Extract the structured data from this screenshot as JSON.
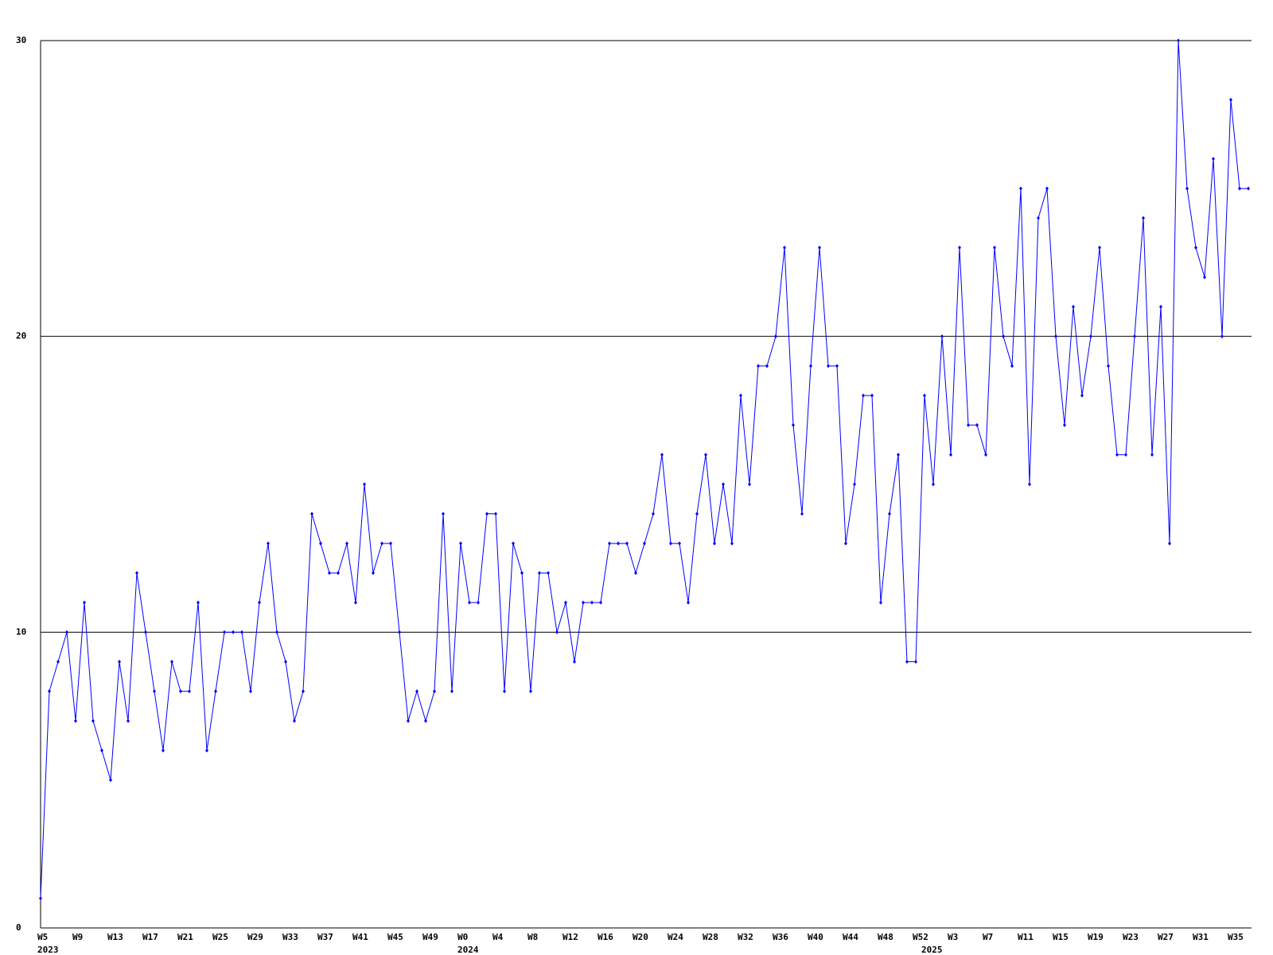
{
  "chart_data": {
    "type": "line",
    "categories": [
      "W5",
      null,
      null,
      null,
      "W9",
      null,
      null,
      null,
      "W13",
      null,
      null,
      null,
      "W17",
      null,
      null,
      null,
      "W21",
      null,
      null,
      null,
      "W25",
      null,
      null,
      null,
      "W29",
      null,
      null,
      null,
      "W33",
      null,
      null,
      null,
      "W37",
      null,
      null,
      null,
      "W41",
      null,
      null,
      null,
      "W45",
      null,
      null,
      null,
      "W49",
      null,
      null,
      null,
      "W0",
      null,
      null,
      null,
      "W4",
      null,
      null,
      null,
      "W8",
      null,
      null,
      null,
      "W12",
      null,
      null,
      null,
      "W16",
      null,
      null,
      null,
      "W20",
      null,
      null,
      null,
      "W24",
      null,
      null,
      null,
      "W28",
      null,
      null,
      null,
      "W32",
      null,
      null,
      null,
      "W36",
      null,
      null,
      null,
      "W40",
      null,
      null,
      null,
      "W44",
      null,
      null,
      null,
      "W48",
      null,
      null,
      null,
      "W52",
      null,
      null,
      null,
      "W3",
      null,
      null,
      null,
      "W7",
      null,
      null,
      null,
      "W11",
      null,
      null,
      null,
      "W15",
      null,
      null,
      null,
      "W19",
      null,
      null,
      null,
      "W23",
      null,
      null,
      null,
      "W27",
      null,
      null,
      null,
      "W31",
      null,
      null,
      null,
      "W35",
      null,
      null
    ],
    "years": [
      "2023",
      null,
      null,
      null,
      null,
      null,
      null,
      null,
      null,
      null,
      null,
      null,
      null,
      null,
      null,
      null,
      null,
      null,
      null,
      null,
      null,
      null,
      null,
      null,
      null,
      null,
      null,
      null,
      null,
      null,
      null,
      null,
      null,
      null,
      null,
      null,
      null,
      null,
      null,
      null,
      null,
      null,
      null,
      null,
      null,
      null,
      null,
      null,
      "2024",
      null,
      null,
      null,
      null,
      null,
      null,
      null,
      null,
      null,
      null,
      null,
      null,
      null,
      null,
      null,
      null,
      null,
      null,
      null,
      null,
      null,
      null,
      null,
      null,
      null,
      null,
      null,
      null,
      null,
      null,
      null,
      null,
      null,
      null,
      null,
      null,
      null,
      null,
      null,
      null,
      null,
      null,
      null,
      null,
      null,
      null,
      null,
      null,
      null,
      null,
      null,
      null,
      "2025",
      null,
      null,
      null,
      null,
      null,
      null,
      null,
      null,
      null,
      null,
      null,
      null,
      null,
      null,
      null,
      null,
      null,
      null,
      null,
      null,
      null,
      null,
      null,
      null,
      null,
      null,
      null,
      null,
      null,
      null,
      null,
      null,
      null,
      null,
      null,
      null,
      null
    ],
    "series": [
      {
        "color": "#0000ff",
        "values": [
          1,
          8,
          9,
          10,
          7,
          11,
          7,
          6,
          5,
          9,
          7,
          12,
          10,
          8,
          6,
          9,
          8,
          8,
          11,
          6,
          8,
          10,
          10,
          10,
          8,
          11,
          13,
          10,
          9,
          7,
          8,
          14,
          13,
          12,
          12,
          13,
          11,
          15,
          12,
          13,
          13,
          10,
          7,
          8,
          7,
          8,
          14,
          8,
          13,
          11,
          11,
          14,
          14,
          8,
          13,
          12,
          8,
          12,
          12,
          10,
          11,
          9,
          11,
          11,
          11,
          13,
          13,
          13,
          12,
          13,
          14,
          16,
          13,
          13,
          11,
          14,
          16,
          13,
          15,
          13,
          18,
          15,
          19,
          19,
          20,
          23,
          17,
          14,
          19,
          23,
          19,
          19,
          13,
          15,
          18,
          18,
          11,
          14,
          16,
          9,
          9,
          18,
          15,
          20,
          16,
          23,
          17,
          17,
          16,
          23,
          20,
          19,
          25,
          15,
          24,
          25,
          20,
          17,
          21,
          18,
          20,
          23,
          19,
          16,
          16,
          20,
          24,
          16,
          21,
          13,
          30,
          25,
          23,
          22,
          26,
          20,
          28,
          25,
          25
        ]
      }
    ],
    "ylim": [
      0,
      30
    ],
    "yticks": [
      0,
      10,
      20,
      30
    ],
    "grid": true
  }
}
